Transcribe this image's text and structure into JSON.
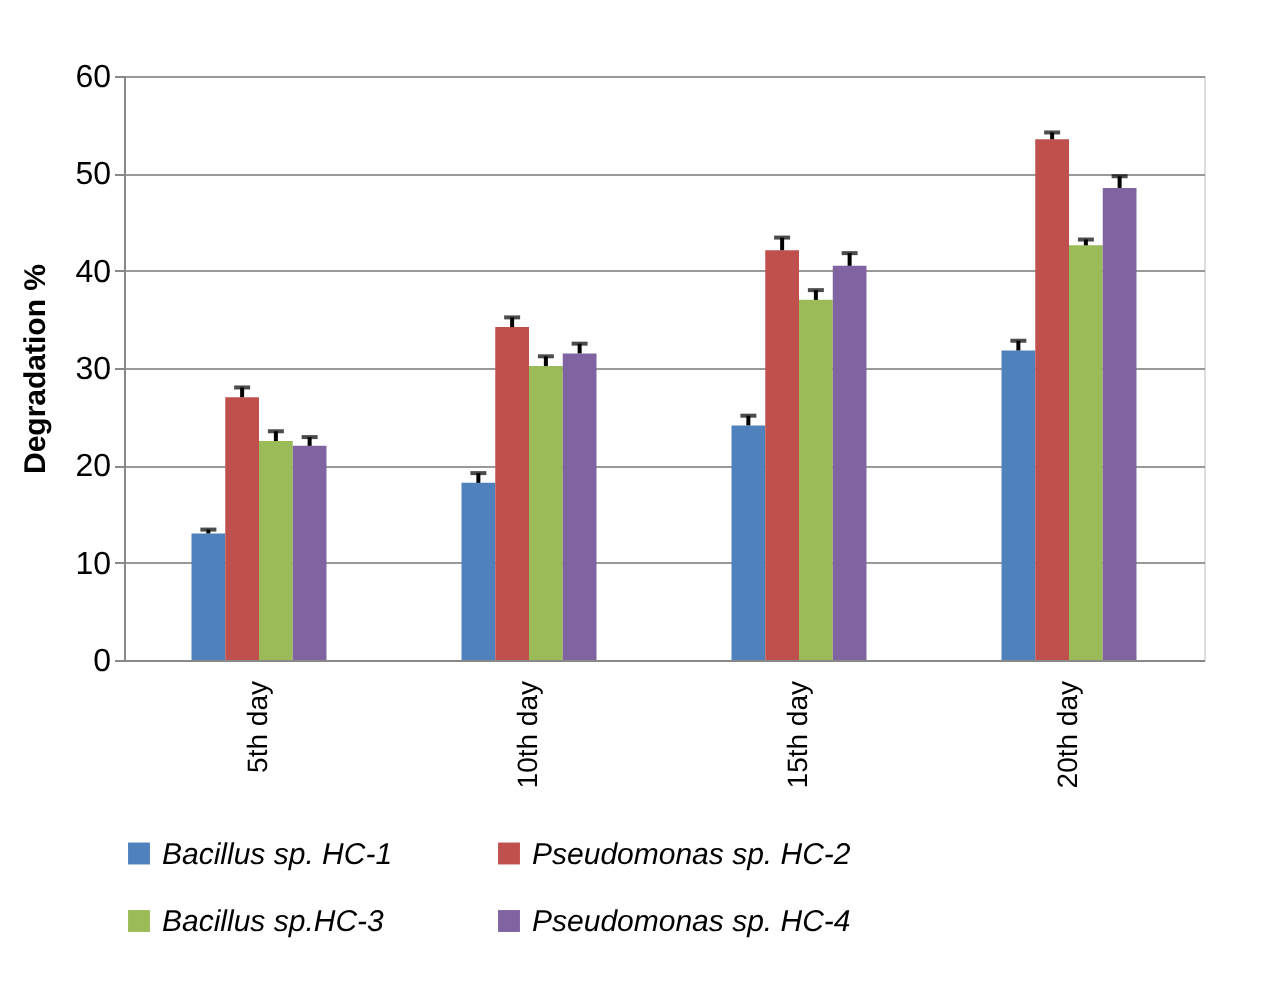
{
  "chart_data": {
    "type": "bar",
    "ylabel": "Degradation %",
    "categories": [
      "5th day",
      "10th day",
      "15th day",
      "20th day"
    ],
    "series": [
      {
        "name": "Bacillus sp. HC-1",
        "color": "#4f81bd",
        "values": [
          13.0,
          18.2,
          24.1,
          31.8
        ],
        "errors": [
          [
            13.0,
            13.4
          ],
          [
            18.2,
            19.2
          ],
          [
            24.1,
            25.1
          ],
          [
            31.8,
            32.8
          ]
        ]
      },
      {
        "name": "Pseudomonas sp. HC-2",
        "color": "#c0504d",
        "values": [
          27.0,
          34.2,
          42.1,
          53.5
        ],
        "errors": [
          [
            27.0,
            28.0
          ],
          [
            34.2,
            35.2
          ],
          [
            42.1,
            43.4
          ],
          [
            53.5,
            54.2
          ]
        ]
      },
      {
        "name": "Bacillus sp.HC-3",
        "color": "#9bbb59",
        "values": [
          22.5,
          30.2,
          37.0,
          42.6
        ],
        "errors": [
          [
            22.5,
            23.5
          ],
          [
            30.2,
            31.2
          ],
          [
            37.0,
            38.0
          ],
          [
            42.6,
            43.2
          ]
        ]
      },
      {
        "name": "Pseudomonas sp. HC-4",
        "color": "#8064a2",
        "values": [
          22.0,
          31.5,
          40.5,
          48.5
        ],
        "errors": [
          [
            22.0,
            22.9
          ],
          [
            31.5,
            32.5
          ],
          [
            40.5,
            41.8
          ],
          [
            48.5,
            49.7
          ]
        ]
      }
    ],
    "ylim": [
      0,
      60
    ],
    "yticks": [
      0,
      10,
      20,
      30,
      40,
      50,
      60
    ],
    "grid": "y",
    "legend": "bottom"
  }
}
